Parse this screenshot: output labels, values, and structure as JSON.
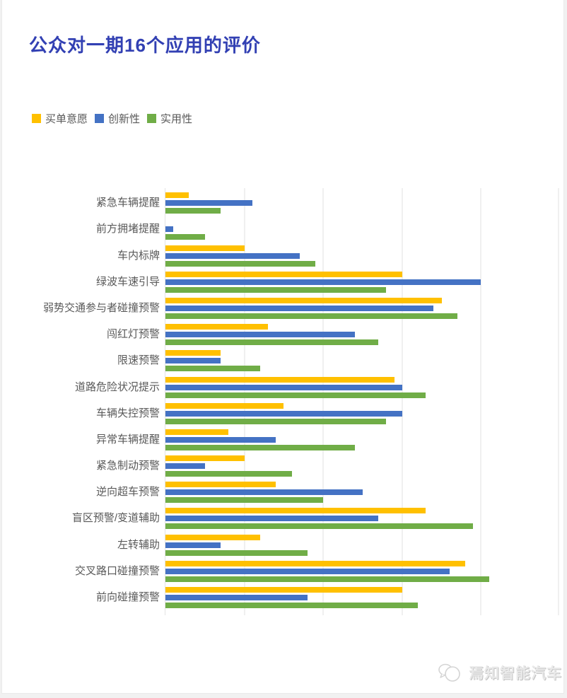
{
  "page": {
    "title": "公众对一期16个应用的评价",
    "watermark_text": "焉知智能汽车"
  },
  "colors": {
    "title": "#3240B3",
    "label_gray": "#595959",
    "gridline": "#F0F0F0",
    "series_yellow": "#FFC000",
    "series_blue": "#4472C4",
    "series_green": "#70AD47",
    "watermark_gray": "#D0D0D0"
  },
  "legend": [
    {
      "label": "买单意愿",
      "color": "#FFC000"
    },
    {
      "label": "创新性",
      "color": "#4472C4"
    },
    {
      "label": "实用性",
      "color": "#70AD47"
    }
  ],
  "chart_data": {
    "type": "bar",
    "orientation": "horizontal",
    "title": "公众对一期16个应用的评价",
    "xlabel": "",
    "ylabel": "",
    "xlim": [
      0,
      5
    ],
    "gridlines": "vertical every 1 unit, axis tick labels hidden",
    "legend_position": "top-left",
    "categories": [
      "紧急车辆提醒",
      "前方拥堵提醒",
      "车内标牌",
      "绿波车速引导",
      "弱势交通参与者碰撞预警",
      "闯红灯预警",
      "限速预警",
      "道路危险状况提示",
      "车辆失控预警",
      "异常车辆提醒",
      "紧急制动预警",
      "逆向超车预警",
      "盲区预警/变道辅助",
      "左转辅助",
      "交叉路口碰撞预警",
      "前向碰撞预警"
    ],
    "series": [
      {
        "name": "买单意愿",
        "color": "#FFC000",
        "values": [
          0.3,
          0,
          1.0,
          3.0,
          3.5,
          1.3,
          0.7,
          2.9,
          1.5,
          0.8,
          1.0,
          1.4,
          3.3,
          1.2,
          3.8,
          3.0
        ]
      },
      {
        "name": "创新性",
        "color": "#4472C4",
        "values": [
          1.1,
          0.1,
          1.7,
          4.0,
          3.4,
          2.4,
          0.7,
          3.0,
          3.0,
          1.4,
          0.5,
          2.5,
          2.7,
          0.7,
          3.6,
          1.8
        ]
      },
      {
        "name": "实用性",
        "color": "#70AD47",
        "values": [
          0.7,
          0.5,
          1.9,
          2.8,
          3.7,
          2.7,
          1.2,
          3.3,
          2.8,
          2.4,
          1.6,
          2.0,
          3.9,
          1.8,
          4.1,
          3.2
        ]
      }
    ]
  }
}
